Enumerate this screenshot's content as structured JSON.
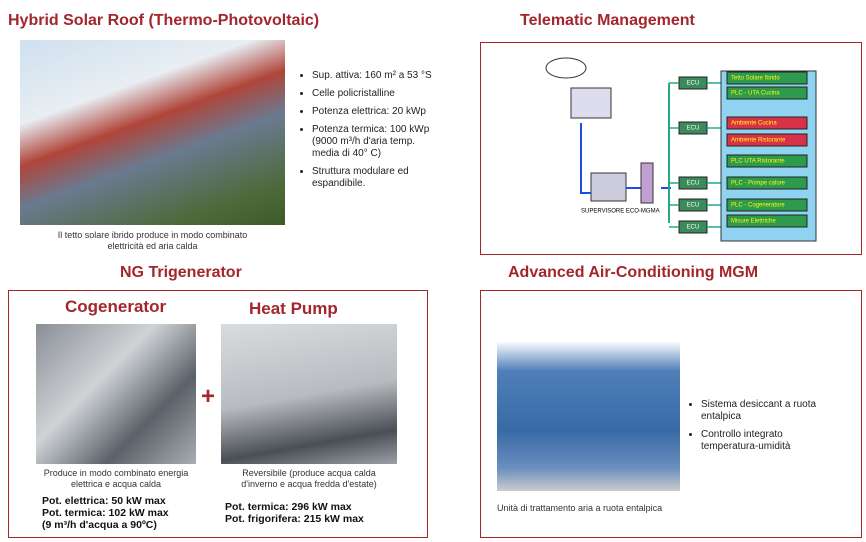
{
  "solar_roof": {
    "title": "Hybrid Solar Roof (Thermo-Photovoltaic)",
    "bullets": [
      [
        "Sup. attiva:  160 m² a 53 °S"
      ],
      [
        "Celle policristalline"
      ],
      [
        "Potenza elettrica:  20 kWp"
      ],
      [
        "Potenza termica:  100 kWp",
        "(9000 m³/h d'aria  temp.",
        "media di 40° C)"
      ],
      [
        "Struttura modulare ed",
        "espandibile."
      ]
    ],
    "caption": [
      "Il tetto solare ibrido produce in modo combinato",
      "elettricità ed aria calda"
    ]
  },
  "telematic": {
    "title": "Telematic Management",
    "left_labels": [
      "SUPERVISORE ECO-MGMA"
    ],
    "ecu": [
      "ECU",
      "ECU",
      "ECU",
      "ECU",
      "ECU"
    ],
    "boxes": [
      "Tetto Solare Ibrido",
      "PLC - UTA Cucina",
      "Ambiente Cucina",
      "Ambiente Ristorante",
      "PLC UTA Ristorante",
      "PLC - Pompe calore",
      "PLC - Cogeneratore",
      "Misure Elettriche"
    ]
  },
  "trigenerator": {
    "title": "NG Trigenerator",
    "left": {
      "title": "Cogenerator",
      "caption": [
        "Produce in modo combinato energia",
        "elettrica e acqua calda"
      ],
      "specs": [
        "Pot. elettrica: 50 kW max",
        "Pot. termica: 102 kW max",
        "(9 m³/h d'acqua a 90ºC)"
      ]
    },
    "plus": "+",
    "right": {
      "title": "Heat Pump",
      "caption": [
        "Reversibile (produce acqua calda",
        "d'inverno e acqua fredda d'estate)"
      ],
      "specs": [
        "Pot. termica: 296 kW max",
        "Pot. frigorifera: 215 kW max"
      ]
    }
  },
  "air_conditioning": {
    "title": "Advanced Air-Conditioning MGM",
    "bullets": [
      [
        "Sistema desiccant a ruota",
        "entalpica"
      ],
      [
        "Controllo integrato",
        "temperatura-umidità"
      ]
    ],
    "caption": [
      "Unità di trattamento aria a ruota entalpica"
    ]
  }
}
